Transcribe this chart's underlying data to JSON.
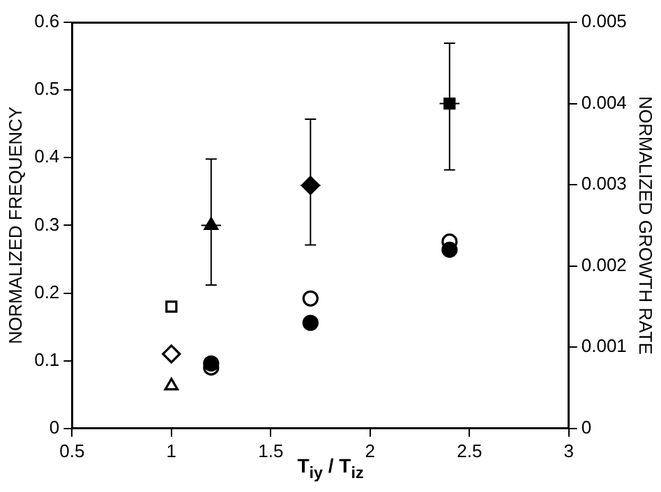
{
  "chart_data": {
    "type": "scatter",
    "xlabel": "T$_{iy}$ / T$_{iz}$",
    "ylabel": "NORMALIZED FREQUENCY",
    "y2label": "NORMALIZED GROWTH RATE",
    "xlim": [
      0.5,
      3
    ],
    "xticks": [
      0.5,
      1,
      1.5,
      2,
      2.5,
      3
    ],
    "ylim": [
      0,
      0.6
    ],
    "yticks": [
      0,
      0.1,
      0.2,
      0.3,
      0.4,
      0.5,
      0.6
    ],
    "y2lim": [
      0,
      0.005
    ],
    "y2ticks": [
      0,
      0.001,
      0.002,
      0.003,
      0.004,
      0.005
    ],
    "grid": false,
    "legend": false,
    "series": [
      {
        "color": "#ffffff",
        "marker": "square",
        "x": [
          1
        ],
        "values": [
          0.18
        ]
      },
      {
        "color": "#ffffff",
        "marker": "diamond",
        "x": [
          1
        ],
        "values": [
          0.11
        ]
      },
      {
        "color": "#ffffff",
        "marker": "triangle",
        "x": [
          1
        ],
        "values": [
          0.063
        ]
      },
      {
        "color": "#000000",
        "marker": "triangle",
        "x": [
          1.2
        ],
        "values": [
          0.3
        ],
        "errors": [
          [
            0.212,
            0.398
          ]
        ],
        "xerrors": [
          0.05
        ]
      },
      {
        "color": "#000000",
        "marker": "diamond",
        "x": [
          1.7
        ],
        "values": [
          0.359
        ],
        "errors": [
          [
            0.271,
            0.457
          ]
        ],
        "xerrors": [
          0.05
        ]
      },
      {
        "color": "#000000",
        "marker": "square",
        "x": [
          2.4
        ],
        "values": [
          0.48
        ],
        "errors": [
          [
            0.382,
            0.569
          ]
        ],
        "xerrors": [
          0.05
        ]
      },
      {
        "color": "#ffffff",
        "marker": "circle",
        "axis": "y2",
        "x": [
          1.2,
          1.7,
          2.4
        ],
        "values": [
          0.00075,
          0.0016,
          0.0023
        ]
      },
      {
        "color": "#000000",
        "marker": "circle",
        "axis": "y2",
        "x": [
          1.2,
          1.7,
          2.4
        ],
        "values": [
          0.0008,
          0.0013,
          0.0022
        ]
      }
    ]
  }
}
